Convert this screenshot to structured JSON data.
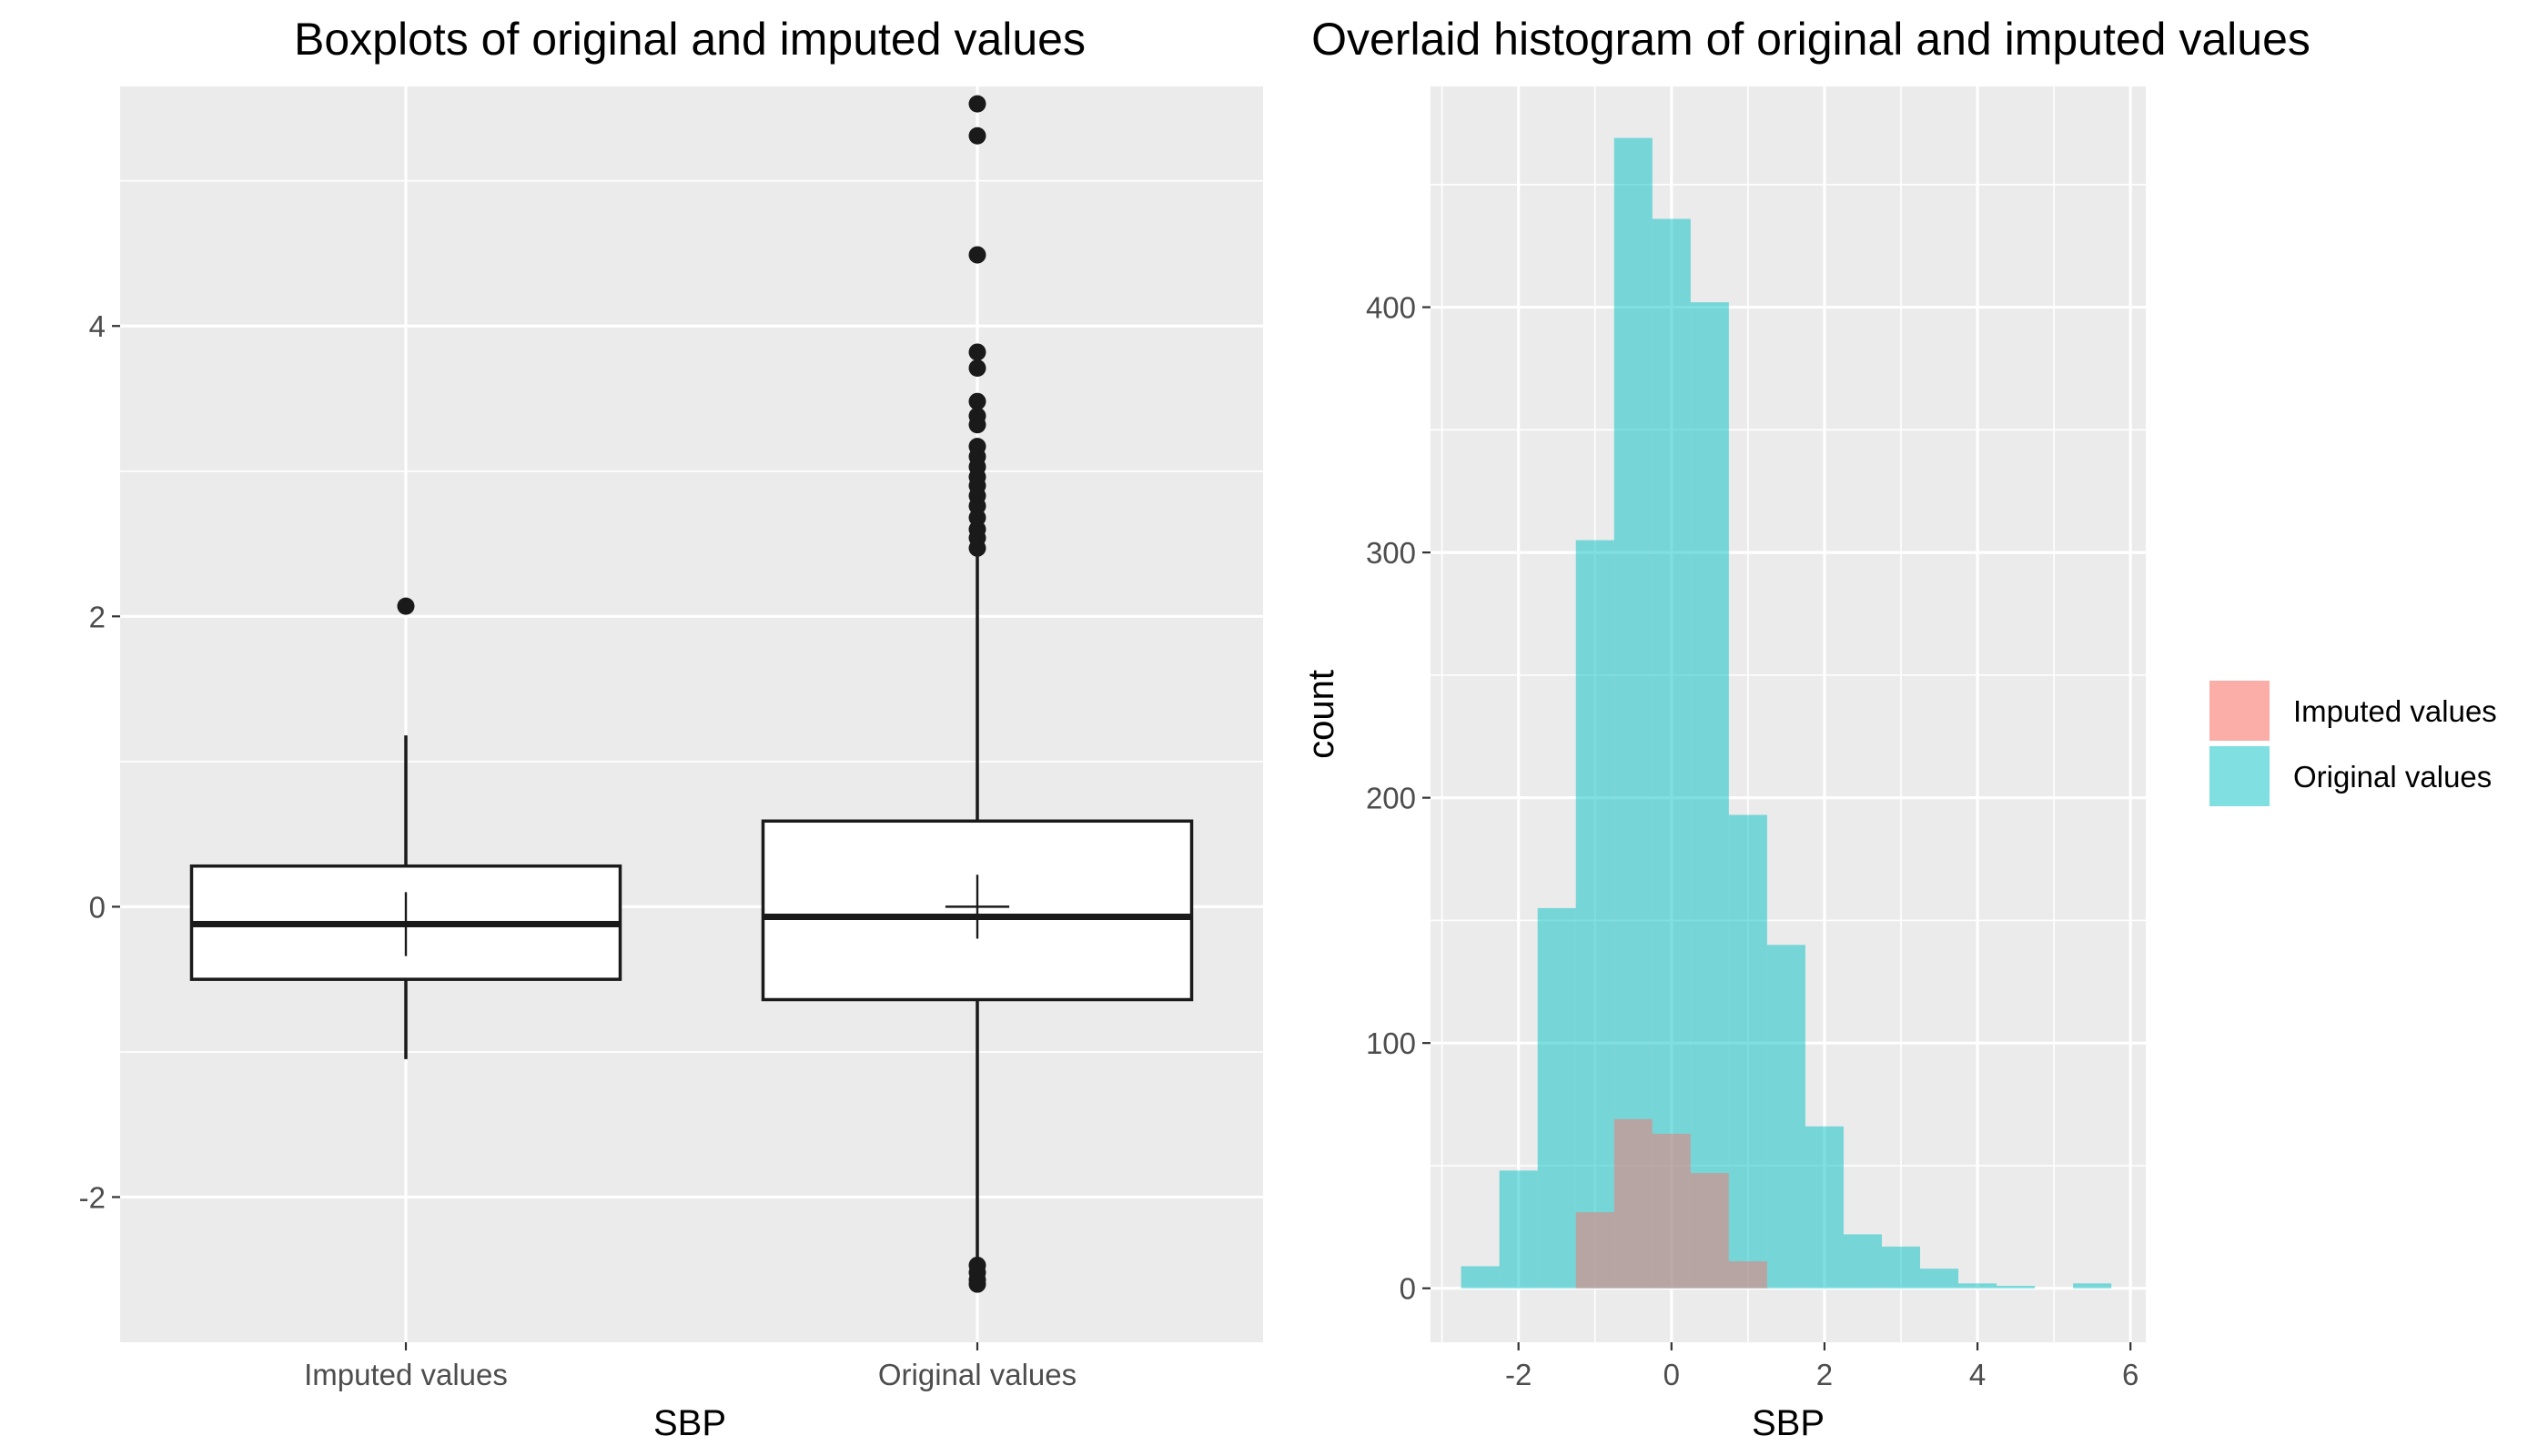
{
  "chart_data": [
    {
      "type": "boxplot",
      "title": "Boxplots of original and imputed values",
      "xlabel": "SBP",
      "ylabel": "",
      "ylim": [
        -3,
        5.65
      ],
      "y_ticks": [
        -2,
        0,
        2,
        4
      ],
      "y_tick_labels": [
        "-2",
        "0",
        "2",
        "4"
      ],
      "categories": [
        "Imputed values",
        "Original values"
      ],
      "boxes": [
        {
          "name": "Imputed values",
          "lower_whisker": -1.05,
          "q1": -0.5,
          "median": -0.12,
          "q3": 0.28,
          "upper_whisker": 1.18,
          "mean": -0.12,
          "mean_marker_halfheight": 0.22,
          "outliers": [
            2.07
          ]
        },
        {
          "name": "Original values",
          "lower_whisker": -2.45,
          "q1": -0.64,
          "median": -0.07,
          "q3": 0.59,
          "upper_whisker": 2.42,
          "mean": 0.0,
          "mean_marker_halfheight": 0.22,
          "outliers": [
            5.53,
            5.31,
            4.49,
            3.82,
            3.71,
            3.48,
            3.38,
            3.32,
            3.17,
            3.1,
            3.03,
            2.96,
            2.9,
            2.83,
            2.76,
            2.68,
            2.6,
            2.54,
            2.47,
            -2.47,
            -2.52,
            -2.57,
            -2.6
          ]
        }
      ]
    },
    {
      "type": "histogram",
      "title": "Overlaid histogram of original and imputed values",
      "xlabel": "SBP",
      "ylabel": "count",
      "xlim": [
        -3.15,
        6.2
      ],
      "ylim": [
        -22,
        490
      ],
      "x_ticks": [
        -2,
        0,
        2,
        4,
        6
      ],
      "x_tick_labels": [
        "-2",
        "0",
        "2",
        "4",
        "6"
      ],
      "y_ticks": [
        0,
        100,
        200,
        300,
        400
      ],
      "y_tick_labels": [
        "0",
        "100",
        "200",
        "300",
        "400"
      ],
      "bin_width": 0.5,
      "bin_starts": [
        -2.75,
        -2.25,
        -1.75,
        -1.25,
        -0.75,
        -0.25,
        0.25,
        0.75,
        1.25,
        1.75,
        2.25,
        2.75,
        3.25,
        3.75,
        4.25,
        4.75,
        5.25
      ],
      "series": [
        {
          "name": "Original values",
          "color": "#00BFC4",
          "values": [
            9,
            48,
            155,
            305,
            469,
            436,
            402,
            193,
            140,
            66,
            22,
            17,
            8,
            2,
            1,
            0,
            2
          ]
        },
        {
          "name": "Imputed values",
          "color": "#F8766D",
          "values": [
            0,
            0,
            0,
            31,
            69,
            63,
            47,
            11,
            0,
            0,
            0,
            0,
            0,
            0,
            0,
            0,
            0
          ]
        }
      ],
      "legend": {
        "position": "right",
        "entries": [
          "Imputed values",
          "Original values"
        ]
      }
    }
  ]
}
